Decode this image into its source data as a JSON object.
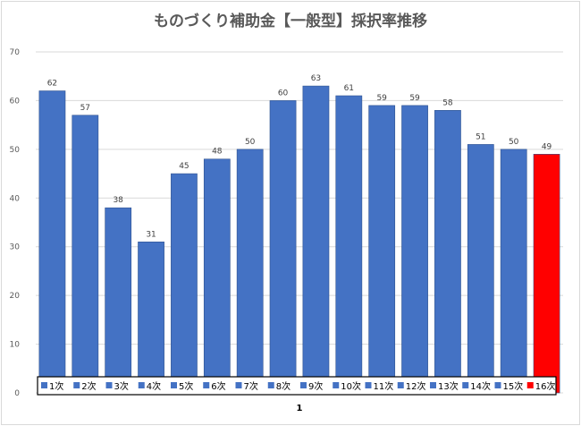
{
  "chart_data": {
    "type": "bar",
    "title": "ものづくり補助金【一般型】採択率推移",
    "xlabel": "1",
    "ylabel": "",
    "ylim": [
      0,
      70
    ],
    "yticks": [
      0,
      10,
      20,
      30,
      40,
      50,
      60,
      70
    ],
    "grid": true,
    "legend_position": "bottom",
    "categories": [
      "1次",
      "2次",
      "3次",
      "4次",
      "5次",
      "6次",
      "7次",
      "8次",
      "9次",
      "10次",
      "11次",
      "12次",
      "13次",
      "14次",
      "15次",
      "16次"
    ],
    "values": [
      62,
      57,
      38,
      31,
      45,
      48,
      50,
      60,
      63,
      61,
      59,
      59,
      58,
      51,
      50,
      49
    ],
    "colors": [
      "#4472c4",
      "#4472c4",
      "#4472c4",
      "#4472c4",
      "#4472c4",
      "#4472c4",
      "#4472c4",
      "#4472c4",
      "#4472c4",
      "#4472c4",
      "#4472c4",
      "#4472c4",
      "#4472c4",
      "#4472c4",
      "#4472c4",
      "#ff0000"
    ]
  }
}
